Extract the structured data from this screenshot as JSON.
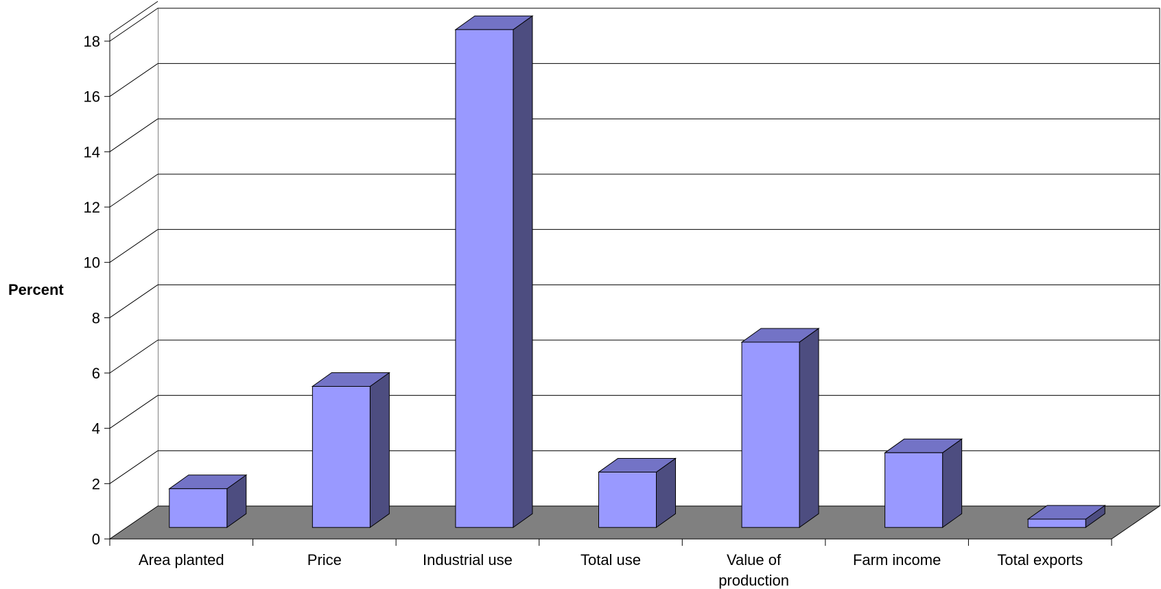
{
  "chart_data": {
    "type": "bar",
    "style": "3d-column",
    "categories": [
      "Area planted",
      "Price",
      "Industrial use",
      "Total use",
      "Value of production",
      "Farm income",
      "Total exports"
    ],
    "category_lines": [
      [
        "Area planted"
      ],
      [
        "Price"
      ],
      [
        "Industrial use"
      ],
      [
        "Total use"
      ],
      [
        "Value of",
        "production"
      ],
      [
        "Farm income"
      ],
      [
        "Total exports"
      ]
    ],
    "series": [
      {
        "values": [
          1.4,
          5.1,
          18.0,
          2.0,
          6.7,
          2.7,
          0.3
        ]
      }
    ],
    "title": "",
    "xlabel": "",
    "ylabel": "Percent",
    "ylim": [
      0,
      18
    ],
    "yticks": [
      0,
      2,
      4,
      6,
      8,
      10,
      12,
      14,
      16,
      18
    ],
    "ytick_labels": [
      "0",
      "2",
      "4",
      "6",
      "8",
      "10",
      "12",
      "14",
      "16",
      "18"
    ],
    "grid": true,
    "legend": "none",
    "colors": {
      "bar_front": "#9999ff",
      "bar_side": "#4d4d80",
      "bar_top": "#7373c6",
      "floor": "#808080",
      "grid": "#000000"
    }
  }
}
